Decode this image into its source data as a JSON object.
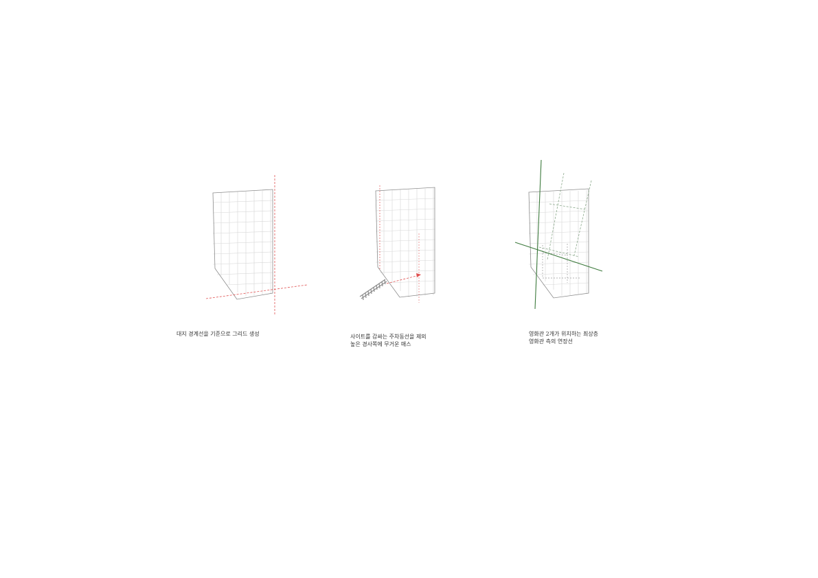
{
  "diagrams": [
    {
      "caption_lines": [
        "대지 경계선을 기준으로 그리드 생성"
      ]
    },
    {
      "caption_lines": [
        "사이트를 감싸는 주차동선을 제외",
        "높은 경사쪽에 무거운 매스"
      ]
    },
    {
      "caption_lines": [
        "영화관 2개가 위치하는 최상층",
        "영화관 측의 연장선"
      ]
    }
  ],
  "colors": {
    "site_outline": "#888888",
    "grid": "#d0d0d0",
    "red_axis": "#e05050",
    "green_axis": "#3c7a3c",
    "green_dashed": "#8aa88a",
    "gray_dashed": "#999999"
  }
}
